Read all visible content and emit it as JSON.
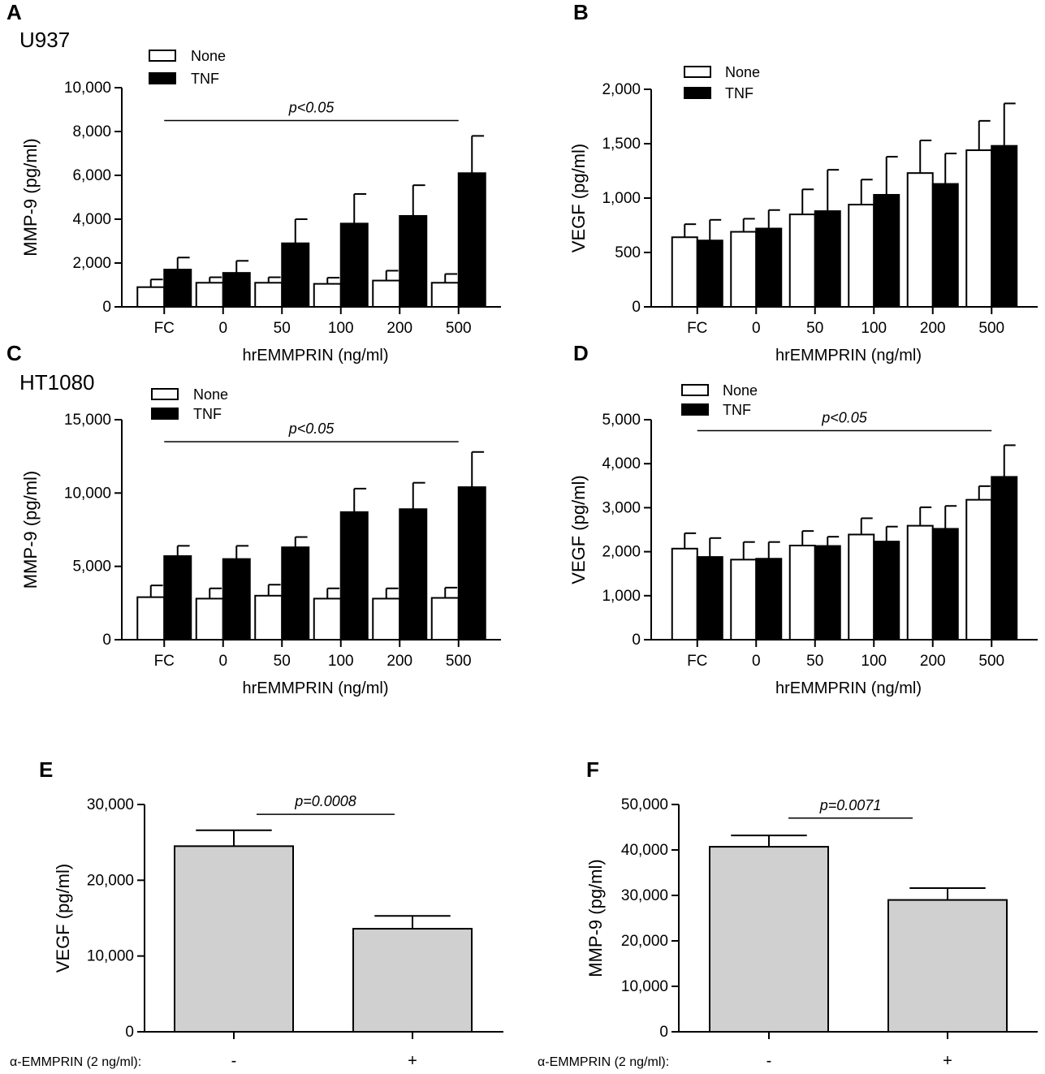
{
  "colors": {
    "none": "#ffffff",
    "tnf": "#000000",
    "gray_bar": "#cfd0cf",
    "ink": "#000000"
  },
  "chart_data": [
    {
      "id": "A",
      "type": "bar",
      "panel_label": "A",
      "cell_line": "U937",
      "ylabel": "MMP-9 (pg/ml)",
      "xlabel": "hrEMMPRIN (ng/ml)",
      "ylim": [
        0,
        10000
      ],
      "yticks": [
        0,
        2000,
        4000,
        6000,
        8000,
        10000
      ],
      "ytick_labels": [
        "0",
        "2,000",
        "4,000",
        "6,000",
        "8,000",
        "10,000"
      ],
      "categories": [
        "FC",
        "0",
        "50",
        "100",
        "200",
        "500"
      ],
      "series": [
        {
          "name": "None",
          "values": [
            900,
            1100,
            1100,
            1050,
            1200,
            1100
          ],
          "errors": [
            350,
            250,
            250,
            280,
            450,
            400
          ]
        },
        {
          "name": "TNF",
          "values": [
            1700,
            1550,
            2900,
            3800,
            4150,
            6100
          ],
          "errors": [
            550,
            550,
            1100,
            1350,
            1400,
            1700
          ]
        }
      ],
      "annotation": {
        "text": "p<0.05",
        "from": 0,
        "to": 5,
        "y": 8500
      }
    },
    {
      "id": "B",
      "type": "bar",
      "panel_label": "B",
      "ylabel": "VEGF (pg/ml)",
      "xlabel": "hrEMMPRIN (ng/ml)",
      "ylim": [
        0,
        2000
      ],
      "yticks": [
        0,
        500,
        1000,
        1500,
        2000
      ],
      "ytick_labels": [
        "0",
        "500",
        "1,000",
        "1,500",
        "2,000"
      ],
      "categories": [
        "FC",
        "0",
        "50",
        "100",
        "200",
        "500"
      ],
      "series": [
        {
          "name": "None",
          "values": [
            640,
            690,
            850,
            940,
            1230,
            1440
          ],
          "errors": [
            120,
            120,
            230,
            230,
            300,
            270
          ]
        },
        {
          "name": "TNF",
          "values": [
            610,
            720,
            880,
            1030,
            1130,
            1480
          ],
          "errors": [
            190,
            170,
            380,
            350,
            280,
            390
          ]
        }
      ]
    },
    {
      "id": "C",
      "type": "bar",
      "panel_label": "C",
      "cell_line": "HT1080",
      "ylabel": "MMP-9 (pg/ml)",
      "xlabel": "hrEMMPRIN (ng/ml)",
      "ylim": [
        0,
        15000
      ],
      "yticks": [
        0,
        5000,
        10000,
        15000
      ],
      "ytick_labels": [
        "0",
        "5,000",
        "10,000",
        "15,000"
      ],
      "categories": [
        "FC",
        "0",
        "50",
        "100",
        "200",
        "500"
      ],
      "series": [
        {
          "name": "None",
          "values": [
            2900,
            2800,
            3000,
            2800,
            2800,
            2850
          ],
          "errors": [
            800,
            700,
            750,
            700,
            700,
            700
          ]
        },
        {
          "name": "TNF",
          "values": [
            5700,
            5500,
            6300,
            8700,
            8900,
            10400
          ],
          "errors": [
            700,
            900,
            700,
            1600,
            1800,
            2400
          ]
        }
      ],
      "annotation": {
        "text": "p<0.05",
        "from": 0,
        "to": 5,
        "y": 13500
      }
    },
    {
      "id": "D",
      "type": "bar",
      "panel_label": "D",
      "ylabel": "VEGF (pg/ml)",
      "xlabel": "hrEMMPRIN (ng/ml)",
      "ylim": [
        0,
        5000
      ],
      "yticks": [
        0,
        1000,
        2000,
        3000,
        4000,
        5000
      ],
      "ytick_labels": [
        "0",
        "1,000",
        "2,000",
        "3,000",
        "4,000",
        "5,000"
      ],
      "categories": [
        "FC",
        "0",
        "50",
        "100",
        "200",
        "500"
      ],
      "series": [
        {
          "name": "None",
          "values": [
            2070,
            1820,
            2140,
            2390,
            2590,
            3180
          ],
          "errors": [
            350,
            400,
            330,
            370,
            420,
            310
          ]
        },
        {
          "name": "TNF",
          "values": [
            1880,
            1840,
            2130,
            2230,
            2520,
            3700
          ],
          "errors": [
            430,
            380,
            210,
            340,
            520,
            720
          ]
        }
      ],
      "annotation": {
        "text": "p<0.05",
        "from": 0,
        "to": 5,
        "y": 4750
      }
    },
    {
      "id": "E",
      "type": "bar",
      "panel_label": "E",
      "ylabel": "VEGF (pg/ml)",
      "ylim": [
        0,
        30000
      ],
      "yticks": [
        0,
        10000,
        20000,
        30000
      ],
      "ytick_labels": [
        "0",
        "10,000",
        "20,000",
        "30,000"
      ],
      "x_prefix": "α-EMMPRIN (2 ng/ml):",
      "categories": [
        "-",
        "+"
      ],
      "values": [
        24500,
        13600
      ],
      "errors": [
        2100,
        1700
      ],
      "annotation": {
        "text": "p=0.0008",
        "y": 28700
      }
    },
    {
      "id": "F",
      "type": "bar",
      "panel_label": "F",
      "ylabel": "MMP-9 (pg/ml)",
      "ylim": [
        0,
        50000
      ],
      "yticks": [
        0,
        10000,
        20000,
        30000,
        40000,
        50000
      ],
      "ytick_labels": [
        "0",
        "10,000",
        "20,000",
        "30,000",
        "40,000",
        "50,000"
      ],
      "x_prefix": "α-EMMPRIN (2 ng/ml):",
      "categories": [
        "-",
        "+"
      ],
      "values": [
        40700,
        29000
      ],
      "errors": [
        2500,
        2600
      ],
      "annotation": {
        "text": "p=0.0071",
        "y": 47000
      }
    }
  ]
}
